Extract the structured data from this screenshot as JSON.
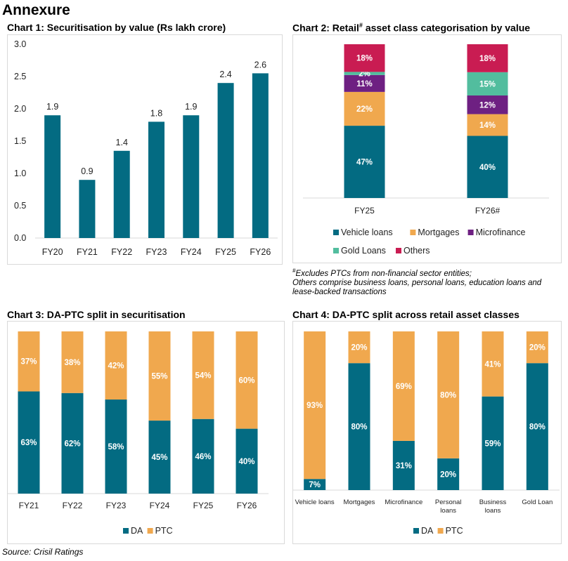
{
  "page": {
    "heading": "Annexure",
    "source": "Source: Crisil Ratings",
    "footnote_marker": "#",
    "footnote_line1": "Excludes PTCs from non-financial sector entities;",
    "footnote_line2": "Others comprise business loans, personal loans, education loans and",
    "footnote_line3": "lease-backed transactions"
  },
  "colors": {
    "vehicle": "#036b82",
    "mortgages": "#f0a84e",
    "microfinance": "#6e2082",
    "gold": "#52bd9e",
    "others": "#c91c52",
    "da": "#036b82",
    "ptc": "#f0a84e",
    "grid": "#d9d9d9"
  },
  "chart_data": [
    {
      "id": "chart1",
      "type": "bar",
      "title": "Chart 1: Securitisation by value (Rs lakh crore)",
      "categories": [
        "FY20",
        "FY21",
        "FY22",
        "FY23",
        "FY24",
        "FY25",
        "FY26"
      ],
      "values": [
        1.9,
        0.9,
        1.35,
        1.8,
        1.9,
        2.4,
        2.55
      ],
      "data_labels": [
        "1.9",
        "0.9",
        "1.4",
        "1.8",
        "1.9",
        "2.4",
        "2.6"
      ],
      "ylim": [
        0,
        3.0
      ],
      "yticks": [
        "0.0",
        "0.5",
        "1.0",
        "1.5",
        "2.0",
        "2.5",
        "3.0"
      ],
      "grid": false
    },
    {
      "id": "chart2",
      "type": "bar",
      "stacked": true,
      "title_prefix": "Chart 2: Retail",
      "title_marker": "#",
      "title_suffix": " asset class categorisation by value",
      "categories": [
        "FY25",
        "FY26#"
      ],
      "series": [
        {
          "name": "Vehicle loans",
          "color_key": "vehicle",
          "values": [
            47,
            40
          ],
          "labels": [
            "47%",
            "40%"
          ]
        },
        {
          "name": "Mortgages",
          "color_key": "mortgages",
          "values": [
            22,
            14
          ],
          "labels": [
            "22%",
            "14%"
          ]
        },
        {
          "name": "Microfinance",
          "color_key": "microfinance",
          "values": [
            11,
            12
          ],
          "labels": [
            "11%",
            "12%"
          ]
        },
        {
          "name": "Gold Loans",
          "color_key": "gold",
          "values": [
            2,
            15
          ],
          "labels": [
            "2%",
            "15%"
          ]
        },
        {
          "name": "Others",
          "color_key": "others",
          "values": [
            18,
            18
          ],
          "labels": [
            "18%",
            "18%"
          ]
        }
      ],
      "legend": "bottom"
    },
    {
      "id": "chart3",
      "type": "bar",
      "stacked": true,
      "title": "Chart 3: DA-PTC split in securitisation",
      "categories": [
        "FY21",
        "FY22",
        "FY23",
        "FY24",
        "FY25",
        "FY26"
      ],
      "series": [
        {
          "name": "DA",
          "color_key": "da",
          "values": [
            63,
            62,
            58,
            45,
            46,
            40
          ],
          "labels": [
            "63%",
            "62%",
            "58%",
            "45%",
            "46%",
            "40%"
          ]
        },
        {
          "name": "PTC",
          "color_key": "ptc",
          "values": [
            37,
            38,
            42,
            55,
            54,
            60
          ],
          "labels": [
            "37%",
            "38%",
            "42%",
            "55%",
            "54%",
            "60%"
          ]
        }
      ],
      "legend": "bottom"
    },
    {
      "id": "chart4",
      "type": "bar",
      "stacked": true,
      "title": "Chart 4: DA-PTC split across retail asset classes",
      "categories": [
        [
          "Vehicle loans"
        ],
        [
          "Mortgages"
        ],
        [
          "Microfinance"
        ],
        [
          "Personal",
          "loans"
        ],
        [
          "Business",
          "loans"
        ],
        [
          "Gold Loan"
        ]
      ],
      "series": [
        {
          "name": "DA",
          "color_key": "da",
          "values": [
            7,
            80,
            31,
            20,
            59,
            80
          ],
          "labels": [
            "7%",
            "80%",
            "31%",
            "20%",
            "59%",
            "80%"
          ]
        },
        {
          "name": "PTC",
          "color_key": "ptc",
          "values": [
            93,
            20,
            69,
            80,
            41,
            20
          ],
          "labels": [
            "93%",
            "20%",
            "69%",
            "80%",
            "41%",
            "20%"
          ]
        }
      ],
      "legend": "bottom"
    }
  ]
}
